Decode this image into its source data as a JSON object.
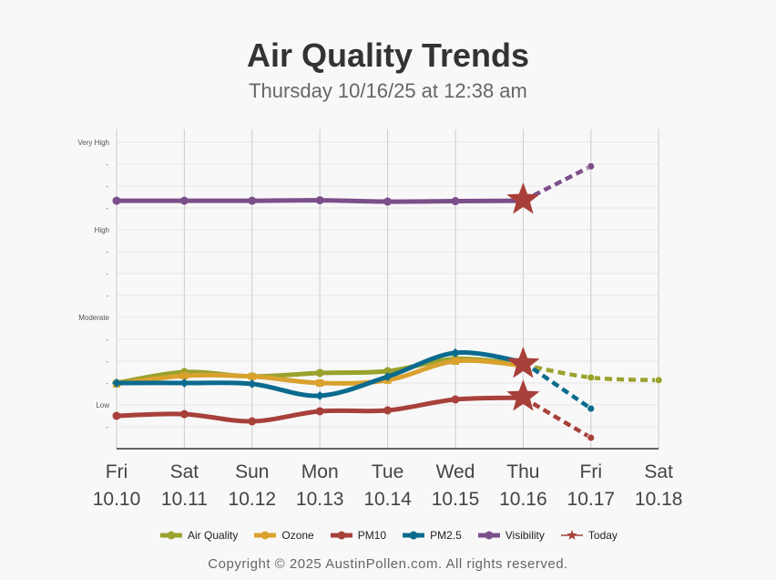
{
  "title": "Air Quality Trends",
  "subtitle": "Thursday 10/16/25 at 12:38 am",
  "copyright": "Copyright © 2025 AustinPollen.com.  All rights reserved.",
  "chart_data": {
    "type": "line",
    "x_days": [
      "Fri",
      "Sat",
      "Sun",
      "Mon",
      "Tue",
      "Wed",
      "Thu",
      "Fri",
      "Sat"
    ],
    "x_dates": [
      "10.10",
      "10.11",
      "10.12",
      "10.13",
      "10.14",
      "10.15",
      "10.16",
      "10.17",
      "10.18"
    ],
    "y_tick_labels": [
      {
        "label": "Low",
        "value": 2
      },
      {
        "label": "Moderate",
        "value": 6
      },
      {
        "label": "High",
        "value": 10
      },
      {
        "label": "Very High",
        "value": 14
      }
    ],
    "ylim": [
      0,
      14.6
    ],
    "grid": true,
    "legend": "bottom",
    "today_index": 6,
    "series": [
      {
        "name": "Air Quality",
        "color": "#9aa22e",
        "values": [
          3.0,
          3.5,
          3.3,
          3.46,
          3.54,
          4.1,
          3.83,
          3.25,
          3.13
        ]
      },
      {
        "name": "Ozone",
        "color": "#d9a22e",
        "values": [
          2.96,
          3.33,
          3.3,
          3.0,
          3.13,
          4.0,
          3.8,
          null,
          null
        ]
      },
      {
        "name": "PM10",
        "color": "#a8403a",
        "values": [
          1.5,
          1.58,
          1.25,
          1.71,
          1.75,
          2.25,
          2.33,
          0.5,
          null
        ]
      },
      {
        "name": "PM2.5",
        "color": "#0b6b8e",
        "values": [
          3.0,
          3.0,
          2.96,
          2.42,
          3.29,
          4.38,
          3.96,
          1.83,
          null
        ]
      },
      {
        "name": "Visibility",
        "color": "#7b4f8a",
        "values": [
          11.33,
          11.33,
          11.33,
          11.35,
          11.29,
          11.31,
          11.33,
          12.9,
          null
        ]
      }
    ],
    "today_marker": {
      "name": "Today",
      "color": "#a8403a"
    }
  }
}
